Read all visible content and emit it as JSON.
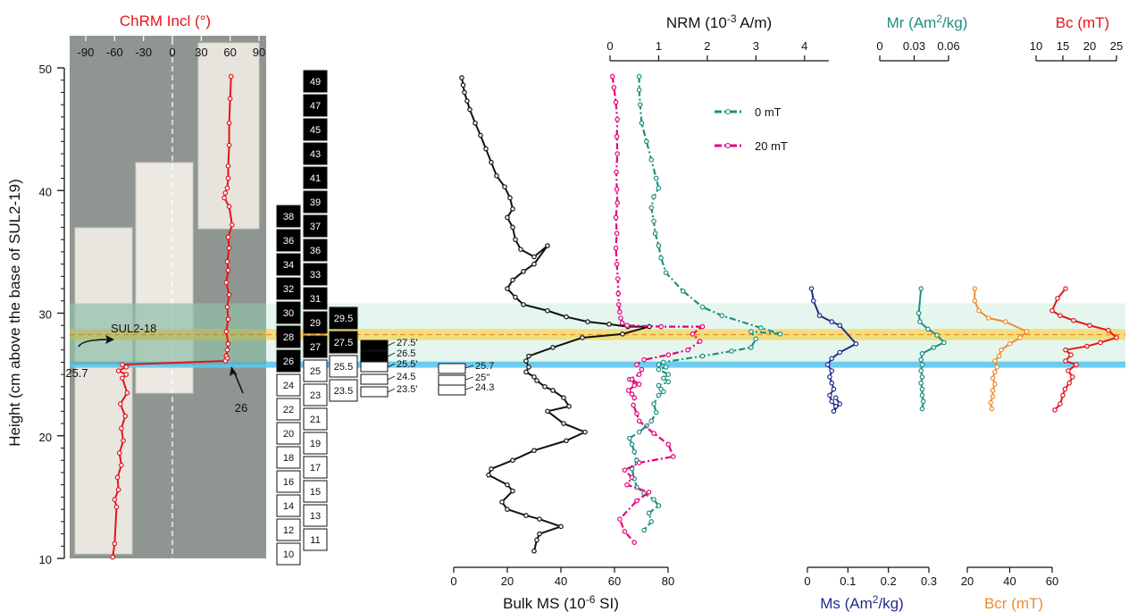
{
  "colors": {
    "black": "#111111",
    "magenta": "#e4007f",
    "teal": "#1f8f7f",
    "navy": "#232b8c",
    "orange": "#ef8c2d",
    "red": "#e4141a",
    "band_green": "#cfeee0",
    "band_gold": "#f3d65a",
    "band_blue": "#5cc8ee",
    "photo_bg": "#8f9691",
    "block": "#e8e6df"
  },
  "labels": {
    "y_axis_title": "Height (cm above the base of SUL2-19)",
    "chrm_title": "ChRM Incl (°)",
    "nrm_title": "NRM (10",
    "nrm_title_sup": "-3",
    "nrm_title_rest": " A/m)",
    "mr_title": "Mr (Am",
    "mr_title_sup": "2",
    "mr_title_rest": "/kg)",
    "bc_title": "Bc (mT)",
    "ms_bulk_title": "Bulk MS (10",
    "ms_bulk_title_sup": "-6",
    "ms_bulk_title_rest": " SI)",
    "ms_title": "Ms (Am",
    "ms_title_sup": "2",
    "ms_title_rest": "/kg)",
    "bcr_title": "Bcr (mT)",
    "sul2_18": "SUL2-18",
    "arrow_25_7": "25.7",
    "arrow_26": "26"
  },
  "legend": [
    {
      "label": "0 mT",
      "color": "#1f8f7f"
    },
    {
      "label": "20 mT",
      "color": "#e4007f"
    }
  ],
  "sample_columns": {
    "left": [
      {
        "label": "38",
        "fill": "black"
      },
      {
        "label": "36",
        "fill": "black"
      },
      {
        "label": "34",
        "fill": "black"
      },
      {
        "label": "32",
        "fill": "black"
      },
      {
        "label": "30",
        "fill": "black"
      },
      {
        "label": "28",
        "fill": "black"
      },
      {
        "label": "26",
        "fill": "black"
      },
      {
        "label": "24",
        "fill": "white"
      },
      {
        "label": "22",
        "fill": "white"
      },
      {
        "label": "20",
        "fill": "white"
      },
      {
        "label": "18",
        "fill": "white"
      },
      {
        "label": "16",
        "fill": "white"
      },
      {
        "label": "14",
        "fill": "white"
      },
      {
        "label": "12",
        "fill": "white"
      },
      {
        "label": "10",
        "fill": "white"
      }
    ],
    "right": [
      {
        "label": "49",
        "fill": "black"
      },
      {
        "label": "47",
        "fill": "black"
      },
      {
        "label": "45",
        "fill": "black"
      },
      {
        "label": "43",
        "fill": "black"
      },
      {
        "label": "41",
        "fill": "black"
      },
      {
        "label": "39",
        "fill": "black"
      },
      {
        "label": "37",
        "fill": "black"
      },
      {
        "label": "36",
        "fill": "black"
      },
      {
        "label": "33",
        "fill": "black"
      },
      {
        "label": "31",
        "fill": "black"
      },
      {
        "label": "29",
        "fill": "black"
      },
      {
        "label": "27",
        "fill": "black"
      },
      {
        "label": "25",
        "fill": "white"
      },
      {
        "label": "23",
        "fill": "white"
      },
      {
        "label": "21",
        "fill": "white"
      },
      {
        "label": "19",
        "fill": "white"
      },
      {
        "label": "17",
        "fill": "white"
      },
      {
        "label": "15",
        "fill": "white"
      },
      {
        "label": "13",
        "fill": "white"
      },
      {
        "label": "11",
        "fill": "white"
      }
    ],
    "half": [
      {
        "label": "29.5",
        "fill": "black"
      },
      {
        "label": "27.5",
        "fill": "black"
      },
      {
        "label": "25.5",
        "fill": "white"
      },
      {
        "label": "23.5",
        "fill": "white"
      }
    ],
    "fine": [
      {
        "label": "27.5'",
        "fill": "black"
      },
      {
        "label": "26.5",
        "fill": "black"
      },
      {
        "label": "25.5'",
        "fill": "white"
      },
      {
        "label": "24.5",
        "fill": "white"
      },
      {
        "label": "23.5'",
        "fill": "white"
      }
    ],
    "extra": [
      {
        "label": "25.7"
      },
      {
        "label": "25''"
      },
      {
        "label": "24.3"
      }
    ]
  },
  "chart_data": [
    {
      "type": "line",
      "name": "ChRM Incl",
      "title": "ChRM Incl (°)",
      "ylabel": "Height (cm above the base of SUL2-19)",
      "xlim": [
        -90,
        90
      ],
      "ylim": [
        10,
        50
      ],
      "xticks": [
        -90,
        -60,
        -30,
        0,
        30,
        60,
        90
      ],
      "yticks": [
        10,
        20,
        30,
        40,
        50
      ],
      "series": [
        {
          "x": [
            61,
            60,
            59,
            59,
            58,
            58,
            57,
            55,
            54,
            59,
            62,
            58,
            59,
            57,
            58,
            56,
            59,
            57,
            58,
            56,
            58,
            57,
            56,
            57,
            55,
            -52,
            -48,
            -56,
            -48,
            -52,
            -47,
            -54,
            -49,
            -53,
            -51,
            -55,
            -53,
            -57,
            -56,
            -60,
            -58,
            -60,
            -62
          ],
          "y": [
            49.3,
            47.5,
            45.5,
            43.7,
            42,
            41,
            40.2,
            39.8,
            39.4,
            38.7,
            37.2,
            36.2,
            35.3,
            34.2,
            33.5,
            32.5,
            31.5,
            30.5,
            29.5,
            28.5,
            27.5,
            27,
            26.5,
            26.3,
            26.1,
            25.8,
            25.6,
            25.3,
            25,
            24.7,
            23.5,
            22.6,
            21.6,
            20.6,
            19.6,
            18.6,
            17.6,
            16.6,
            15.6,
            14.8,
            14.2,
            11.2,
            10.1
          ]
        }
      ]
    },
    {
      "type": "line",
      "name": "Bulk MS",
      "xlabel": "Bulk MS (10-6 SI)",
      "xlim": [
        0,
        80
      ],
      "xticks": [
        0,
        20,
        40,
        60,
        80
      ],
      "series": [
        {
          "x": [
            3,
            3.5,
            4,
            5,
            6,
            8,
            10,
            12,
            14,
            16,
            19,
            21,
            22,
            20,
            22,
            23,
            25,
            30,
            35,
            30,
            26,
            22,
            20,
            23,
            26,
            35,
            42,
            50,
            58,
            65,
            73,
            63,
            48,
            37,
            28,
            27,
            28,
            27,
            30,
            31,
            34,
            37,
            41,
            43,
            35,
            41,
            49,
            42,
            30,
            22,
            14,
            13,
            20,
            22,
            18,
            20,
            27,
            32,
            40,
            32,
            31,
            30
          ],
          "y": [
            49.2,
            48.6,
            48,
            47.3,
            46.6,
            45.5,
            44.5,
            43.4,
            42.3,
            41.2,
            40.3,
            39.4,
            38.5,
            37.8,
            37,
            36,
            35.2,
            34.6,
            35.5,
            34,
            33.4,
            32.7,
            32,
            31.3,
            30.7,
            30.2,
            29.7,
            29.3,
            29.1,
            28.9,
            28.9,
            28.3,
            28,
            27.2,
            26.5,
            26.1,
            25.6,
            25.2,
            24.8,
            24.5,
            24,
            23.7,
            23.1,
            22.4,
            22,
            21,
            20.3,
            19.6,
            18.8,
            18,
            17.3,
            16.8,
            16,
            15.5,
            14.6,
            14,
            13.5,
            13.2,
            12.6,
            12,
            11.5,
            10.6
          ]
        }
      ]
    },
    {
      "type": "line",
      "name": "NRM",
      "title": "NRM (10-3 A/m)",
      "xlim": [
        0,
        4.5
      ],
      "xticks": [
        0,
        1,
        2,
        3,
        4
      ],
      "series": [
        {
          "name": "0 mT",
          "x": [
            0.6,
            0.6,
            0.62,
            0.65,
            0.75,
            0.85,
            0.95,
            1.0,
            0.9,
            0.85,
            0.9,
            0.93,
            1.0,
            1.05,
            1.15,
            1.5,
            1.9,
            2.3,
            3.1,
            3.5,
            2.9,
            3.0,
            2.9,
            2.5,
            1.9,
            1.1,
            1.0,
            1.15,
            1.0,
            1.2,
            1.1,
            1.2,
            1.0,
            1.05,
            1.1,
            1.0,
            0.9,
            0.95,
            0.85,
            0.75,
            0.6,
            0.4,
            0.45,
            0.5,
            0.55,
            0.45,
            0.5,
            0.55,
            0.7,
            0.9,
            1.0,
            0.8,
            0.85,
            0.7
          ],
          "y": [
            49.3,
            48.2,
            47,
            45.5,
            44,
            42.5,
            41,
            40.2,
            39.5,
            38.6,
            37.5,
            36.5,
            35.5,
            34.5,
            33.3,
            31.8,
            30.5,
            29.8,
            28.8,
            28.3,
            28.5,
            27.9,
            27.2,
            26.9,
            26.5,
            26,
            25.8,
            25.6,
            25.4,
            25,
            24.7,
            24.4,
            24.1,
            23.8,
            23.6,
            23.3,
            22.6,
            21.9,
            21.2,
            20.8,
            20.3,
            19.8,
            19.3,
            18.7,
            18,
            17.3,
            16.5,
            15.8,
            15.3,
            14.8,
            14.3,
            13.7,
            13,
            12.3
          ]
        },
        {
          "name": "20 mT",
          "x": [
            0.05,
            0.08,
            0.12,
            0.15,
            0.14,
            0.15,
            0.13,
            0.14,
            0.15,
            0.12,
            0.14,
            0.12,
            0.14,
            0.16,
            0.17,
            0.18,
            0.2,
            0.22,
            0.25,
            0.35,
            1.05,
            1.9,
            1.7,
            1.85,
            1.6,
            1.2,
            0.7,
            0.55,
            0.65,
            0.6,
            0.4,
            0.6,
            0.45,
            0.5,
            0.38,
            0.45,
            0.5,
            0.48,
            0.55,
            0.6,
            0.9,
            1.2,
            1.3,
            0.6,
            0.3,
            0.45,
            0.35,
            0.8,
            0.55,
            0.2,
            0.3,
            0.5
          ],
          "y": [
            49.3,
            48.4,
            47.2,
            45.8,
            44.4,
            43,
            41.5,
            40.1,
            39,
            37.8,
            36.5,
            35.3,
            34,
            32.8,
            31.6,
            30.7,
            30.1,
            29.6,
            29.2,
            29,
            28.9,
            28.9,
            28.3,
            27.7,
            27,
            26.6,
            26.2,
            25.8,
            25.4,
            25,
            24.6,
            24.2,
            24.6,
            24.1,
            23.7,
            23.4,
            23.1,
            22.5,
            21.8,
            21.2,
            20.2,
            19.3,
            18.3,
            17.8,
            17.2,
            16.6,
            16.0,
            15.4,
            14.7,
            13.2,
            12.2,
            11.3
          ]
        }
      ]
    },
    {
      "type": "line",
      "name": "Ms",
      "xlabel": "Ms (Am2/kg)",
      "xlim": [
        0,
        0.3
      ],
      "xticks": [
        0,
        0.1,
        0.2,
        0.3
      ],
      "series": [
        {
          "x": [
            0.01,
            0.015,
            0.03,
            0.06,
            0.08,
            0.12,
            0.08,
            0.06,
            0.05,
            0.06,
            0.055,
            0.06,
            0.065,
            0.055,
            0.06,
            0.07,
            0.065,
            0.08,
            0.07
          ],
          "y": [
            32,
            31,
            29.8,
            29.3,
            29,
            27.5,
            26.8,
            26.3,
            25.8,
            25.3,
            24.8,
            24.3,
            23.8,
            23.3,
            22.8,
            22.4,
            22,
            22.6,
            23.1
          ]
        }
      ]
    },
    {
      "type": "line",
      "name": "Mr",
      "title": "Mr (Am2/kg)",
      "xlim": [
        0,
        0.06
      ],
      "xticks": [
        0,
        0.03,
        0.06
      ],
      "series": [
        {
          "x": [
            0.036,
            0.034,
            0.035,
            0.042,
            0.05,
            0.056,
            0.047,
            0.037,
            0.036,
            0.037,
            0.036,
            0.037,
            0.036,
            0.037,
            0.037,
            0.038,
            0.037
          ],
          "y": [
            32,
            30,
            29.3,
            28.7,
            28.2,
            27.6,
            27.2,
            26.7,
            26.2,
            25.8,
            25.3,
            24.8,
            24.3,
            23.8,
            23.3,
            22.8,
            22.2
          ]
        }
      ]
    },
    {
      "type": "line",
      "name": "Bcr",
      "xlabel": "Bcr (mT)",
      "xlim": [
        20,
        60
      ],
      "xticks": [
        20,
        40,
        60
      ],
      "series": [
        {
          "x": [
            23.5,
            23.5,
            25.5,
            30,
            38,
            48,
            45,
            40,
            36,
            35,
            33,
            34,
            33,
            32,
            33,
            32,
            32,
            31,
            31.5
          ],
          "y": [
            32,
            31,
            30.2,
            29.6,
            29.3,
            28.5,
            28,
            27.5,
            27,
            26.5,
            26.1,
            25.6,
            25.2,
            24.7,
            24.2,
            23.7,
            23.2,
            22.7,
            22.2
          ]
        }
      ]
    },
    {
      "type": "line",
      "name": "Bc",
      "title": "Bc (mT)",
      "xlim": [
        10,
        25
      ],
      "xticks": [
        10,
        15,
        20,
        25
      ],
      "series": [
        {
          "x": [
            15.5,
            14,
            13,
            14.5,
            17,
            20,
            23.5,
            25,
            22,
            19.5,
            15.5,
            16.5,
            15.5,
            17.5,
            16,
            16.8,
            16.2,
            15.4,
            15,
            14.5,
            13.5
          ],
          "y": [
            32,
            31.2,
            30.2,
            29.8,
            29.4,
            29,
            28.6,
            28,
            27.6,
            27.3,
            27,
            26.6,
            26.1,
            25.8,
            25.3,
            24.8,
            24.3,
            23.8,
            23.3,
            22.6,
            22.1
          ]
        }
      ]
    }
  ]
}
